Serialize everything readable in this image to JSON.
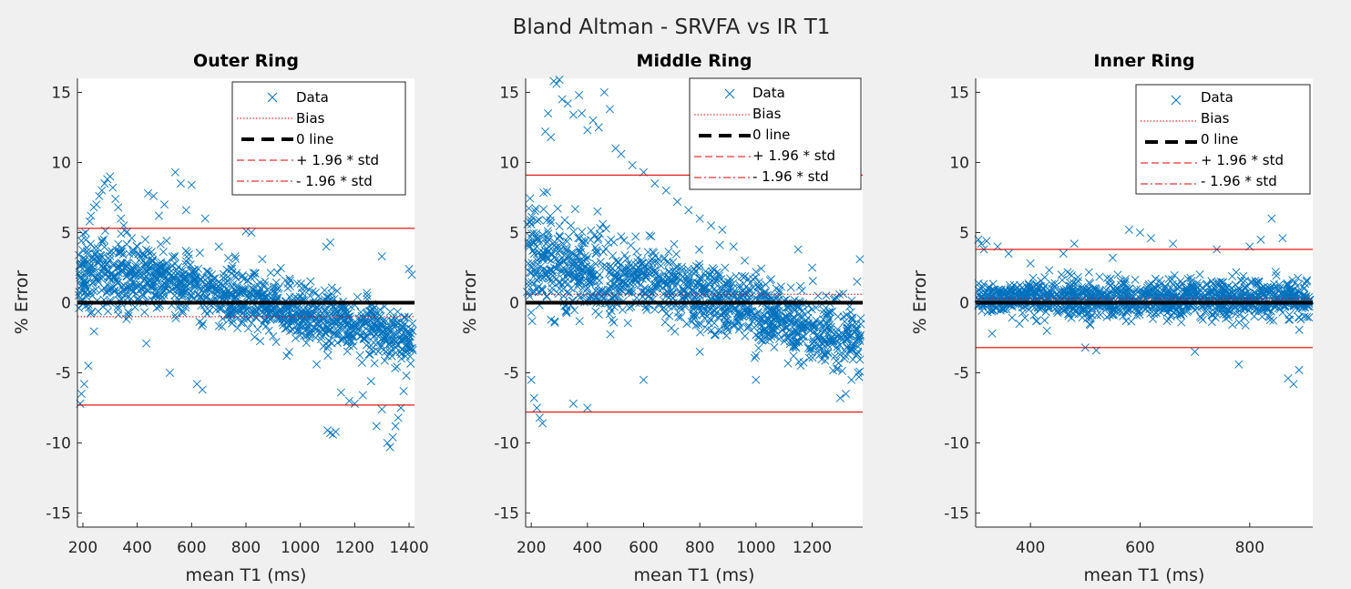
{
  "figure_title": "Bland Altman - SRVFA vs IR T1",
  "colors": {
    "data": "#0072bd",
    "bias": "#e00000",
    "zero": "#000000",
    "limit": "#e00000",
    "background": "#f0f0f0",
    "axes": "#ffffff"
  },
  "legend_labels": [
    "Data",
    "Bias",
    "0 line",
    "+ 1.96 * std",
    "- 1.96 * std"
  ],
  "chart_data": [
    {
      "type": "scatter",
      "title": "Outer Ring",
      "xlabel": "mean T1 (ms)",
      "ylabel": "% Error",
      "xlim": [
        180,
        1420
      ],
      "ylim": [
        -16,
        16
      ],
      "xticks": [
        200,
        400,
        600,
        800,
        1000,
        1200,
        1400
      ],
      "yticks": [
        -15,
        -10,
        -5,
        0,
        5,
        10,
        15
      ],
      "bias": -1.0,
      "upper_loa": 5.3,
      "lower_loa": -7.3,
      "legend_position": "top-right",
      "series": [
        {
          "name": "Data",
          "marker": "x"
        }
      ],
      "points": [
        [
          190,
          -7.2
        ],
        [
          195,
          -6.5
        ],
        [
          200,
          4.9
        ],
        [
          205,
          -5.8
        ],
        [
          210,
          5.0
        ],
        [
          215,
          3.9
        ],
        [
          220,
          -4.5
        ],
        [
          225,
          5.8
        ],
        [
          230,
          6.2
        ],
        [
          240,
          6.8
        ],
        [
          250,
          7.0
        ],
        [
          260,
          7.6
        ],
        [
          270,
          8.0
        ],
        [
          280,
          8.5
        ],
        [
          290,
          8.8
        ],
        [
          300,
          9.0
        ],
        [
          310,
          8.2
        ],
        [
          320,
          7.4
        ],
        [
          330,
          6.8
        ],
        [
          340,
          6.0
        ],
        [
          350,
          5.5
        ],
        [
          360,
          5.0
        ],
        [
          380,
          4.6
        ],
        [
          400,
          4.0
        ],
        [
          420,
          3.5
        ],
        [
          440,
          7.8
        ],
        [
          460,
          7.6
        ],
        [
          480,
          6.2
        ],
        [
          500,
          7.0
        ],
        [
          520,
          -5.0
        ],
        [
          540,
          9.3
        ],
        [
          560,
          8.5
        ],
        [
          580,
          6.6
        ],
        [
          600,
          8.4
        ],
        [
          620,
          -5.8
        ],
        [
          640,
          -6.2
        ],
        [
          650,
          6.0
        ],
        [
          700,
          4.0
        ],
        [
          760,
          3.3
        ],
        [
          800,
          5.1
        ],
        [
          820,
          5.0
        ],
        [
          860,
          3.1
        ],
        [
          900,
          -2.4
        ],
        [
          950,
          -3.8
        ],
        [
          1000,
          -2.0
        ],
        [
          1060,
          -4.4
        ],
        [
          1100,
          -9.1
        ],
        [
          1110,
          -9.3
        ],
        [
          1120,
          -9.4
        ],
        [
          1130,
          -9.2
        ],
        [
          1150,
          -6.4
        ],
        [
          1180,
          -7.0
        ],
        [
          1200,
          -7.2
        ],
        [
          1230,
          -6.6
        ],
        [
          1260,
          -5.6
        ],
        [
          1280,
          -8.8
        ],
        [
          1300,
          -7.6
        ],
        [
          1320,
          -10.0
        ],
        [
          1330,
          -10.3
        ],
        [
          1340,
          -9.6
        ],
        [
          1350,
          -8.8
        ],
        [
          1360,
          -8.2
        ],
        [
          1370,
          -7.5
        ],
        [
          1380,
          -6.3
        ],
        [
          1390,
          -5.2
        ],
        [
          1400,
          2.4
        ],
        [
          1410,
          2.0
        ],
        [
          1095,
          4.0
        ],
        [
          1110,
          4.3
        ],
        [
          1300,
          3.3
        ]
      ]
    },
    {
      "type": "scatter",
      "title": "Middle Ring",
      "xlabel": "mean T1 (ms)",
      "ylabel": "% Error",
      "xlim": [
        180,
        1380
      ],
      "ylim": [
        -16,
        16
      ],
      "xticks": [
        200,
        400,
        600,
        800,
        1000,
        1200
      ],
      "yticks": [
        -15,
        -10,
        -5,
        0,
        5,
        10,
        15
      ],
      "bias": 0.6,
      "upper_loa": 9.1,
      "lower_loa": -7.8,
      "legend_position": "top-right",
      "series": [
        {
          "name": "Data",
          "marker": "x"
        }
      ],
      "points": [
        [
          200,
          -5.5
        ],
        [
          210,
          -6.8
        ],
        [
          220,
          -7.5
        ],
        [
          230,
          -8.2
        ],
        [
          240,
          -8.6
        ],
        [
          250,
          12.2
        ],
        [
          260,
          13.5
        ],
        [
          270,
          11.8
        ],
        [
          280,
          15.8
        ],
        [
          290,
          15.6
        ],
        [
          300,
          15.9
        ],
        [
          310,
          14.5
        ],
        [
          330,
          14.2
        ],
        [
          350,
          13.4
        ],
        [
          370,
          14.8
        ],
        [
          380,
          13.5
        ],
        [
          400,
          12.3
        ],
        [
          420,
          13.0
        ],
        [
          440,
          12.5
        ],
        [
          460,
          15.0
        ],
        [
          480,
          13.8
        ],
        [
          500,
          11.0
        ],
        [
          520,
          10.6
        ],
        [
          560,
          9.8
        ],
        [
          600,
          9.3
        ],
        [
          640,
          8.5
        ],
        [
          680,
          8.0
        ],
        [
          720,
          7.2
        ],
        [
          760,
          6.6
        ],
        [
          800,
          6.0
        ],
        [
          840,
          5.5
        ],
        [
          880,
          5.2
        ],
        [
          920,
          4.0
        ],
        [
          960,
          3.0
        ],
        [
          1000,
          2.2
        ],
        [
          1050,
          1.6
        ],
        [
          1100,
          -1.2
        ],
        [
          1150,
          3.8
        ],
        [
          1200,
          2.5
        ],
        [
          1250,
          0.5
        ],
        [
          1300,
          -6.8
        ],
        [
          1320,
          -6.5
        ],
        [
          1340,
          -5.5
        ],
        [
          1360,
          1.5
        ],
        [
          1370,
          3.1
        ],
        [
          400,
          -7.5
        ],
        [
          350,
          -7.2
        ],
        [
          600,
          -5.5
        ],
        [
          800,
          -3.5
        ],
        [
          1000,
          -5.5
        ]
      ]
    },
    {
      "type": "scatter",
      "title": "Inner Ring",
      "xlabel": "mean T1 (ms)",
      "ylabel": "% Error",
      "xlim": [
        300,
        915
      ],
      "ylim": [
        -16,
        16
      ],
      "xticks": [
        400,
        600,
        800
      ],
      "yticks": [
        -15,
        -10,
        -5,
        0,
        5,
        10,
        15
      ],
      "bias": 0.3,
      "upper_loa": 3.8,
      "lower_loa": -3.2,
      "legend_position": "top-right",
      "series": [
        {
          "name": "Data",
          "marker": "x"
        }
      ],
      "points": [
        [
          305,
          4.5
        ],
        [
          310,
          4.2
        ],
        [
          315,
          3.8
        ],
        [
          320,
          4.4
        ],
        [
          330,
          -2.2
        ],
        [
          340,
          4.0
        ],
        [
          360,
          3.5
        ],
        [
          380,
          -1.5
        ],
        [
          400,
          2.8
        ],
        [
          430,
          -2.0
        ],
        [
          460,
          3.5
        ],
        [
          480,
          4.2
        ],
        [
          500,
          -3.2
        ],
        [
          520,
          -3.4
        ],
        [
          550,
          3.2
        ],
        [
          580,
          5.2
        ],
        [
          600,
          5.0
        ],
        [
          620,
          4.6
        ],
        [
          660,
          4.2
        ],
        [
          700,
          -3.5
        ],
        [
          740,
          3.8
        ],
        [
          780,
          -4.4
        ],
        [
          800,
          4.0
        ],
        [
          820,
          4.5
        ],
        [
          840,
          6.0
        ],
        [
          860,
          4.6
        ],
        [
          870,
          -5.4
        ],
        [
          880,
          -5.8
        ],
        [
          890,
          -4.8
        ],
        [
          900,
          -1.0
        ],
        [
          910,
          0.2
        ]
      ]
    }
  ]
}
